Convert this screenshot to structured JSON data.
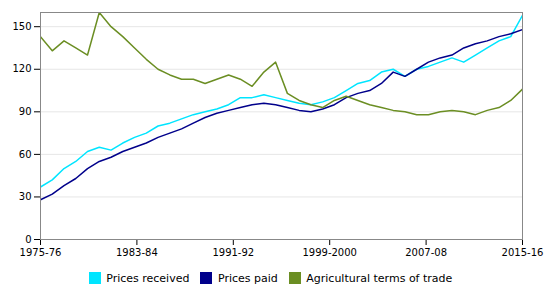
{
  "chart_data": {
    "type": "line",
    "x": [
      0,
      0.9756,
      1.9512,
      2.9268,
      3.9024,
      4.878,
      5.8537,
      6.8293,
      7.8049,
      8.7805,
      9.7561,
      10.7317,
      11.7073,
      12.6829,
      13.6585,
      14.6341,
      15.6098,
      16.5854,
      17.561,
      18.5366,
      19.5122,
      20.4878,
      21.4634,
      22.439,
      23.4146,
      24.3902,
      25.3659,
      26.3415,
      27.3171,
      28.2927,
      29.2683,
      30.2439,
      31.2195,
      32.1951,
      33.1707,
      34.1463,
      35.122,
      36.0976,
      37.0732,
      38.0488,
      39.0244,
      40
    ],
    "xlim": [
      0,
      40
    ],
    "xticks": [
      {
        "value": 0,
        "label": "1975-76"
      },
      {
        "value": 8,
        "label": "1983-84"
      },
      {
        "value": 16,
        "label": "1991-92"
      },
      {
        "value": 24,
        "label": "1999-2000"
      },
      {
        "value": 32,
        "label": "2007-08"
      },
      {
        "value": 40,
        "label": "2015-16"
      }
    ],
    "ylim": [
      0,
      160
    ],
    "yticks": [
      0,
      30,
      60,
      90,
      120,
      150
    ],
    "grid": true,
    "legend": "bottom",
    "series": [
      {
        "name": "Prices received",
        "color": "#00e5ff",
        "values": [
          37,
          42,
          50,
          55,
          62,
          65,
          63,
          68,
          72,
          75,
          80,
          82,
          85,
          88,
          90,
          92,
          95,
          100,
          100,
          102,
          100,
          98,
          96,
          95,
          97,
          100,
          105,
          110,
          112,
          118,
          120,
          115,
          120,
          122,
          125,
          128,
          125,
          130,
          135,
          140,
          143,
          158
        ]
      },
      {
        "name": "Prices paid",
        "color": "#00008b",
        "values": [
          28,
          32,
          38,
          43,
          50,
          55,
          58,
          62,
          65,
          68,
          72,
          75,
          78,
          82,
          86,
          89,
          91,
          93,
          95,
          96,
          95,
          93,
          91,
          90,
          92,
          95,
          100,
          103,
          105,
          110,
          118,
          115,
          120,
          125,
          128,
          130,
          135,
          138,
          140,
          143,
          145,
          148
        ]
      },
      {
        "name": "Agricultural terms of trade",
        "color": "#6b8e23",
        "values": [
          143,
          133,
          140,
          135,
          130,
          160,
          150,
          143,
          135,
          127,
          120,
          116,
          113,
          113,
          110,
          113,
          116,
          113,
          108,
          118,
          125,
          103,
          98,
          95,
          93,
          98,
          101,
          98,
          95,
          93,
          91,
          90,
          88,
          88,
          90,
          91,
          90,
          88,
          91,
          93,
          98,
          106
        ]
      }
    ]
  }
}
